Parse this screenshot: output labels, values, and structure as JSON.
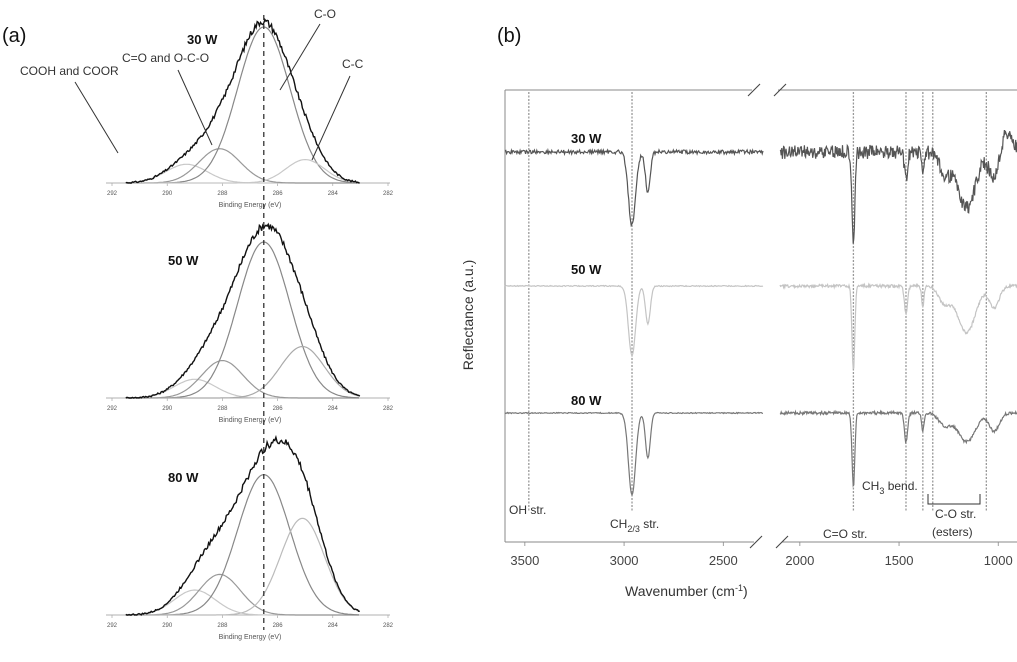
{
  "chart_data": [
    {
      "panel_label": "(a)",
      "type": "line",
      "xlabel": "Binding Energy (eV)",
      "xlim": [
        292,
        282
      ],
      "x_ticks": [
        "292",
        "290",
        "288",
        "286",
        "284",
        "282"
      ],
      "dashed_line_x": 286.5,
      "annotations": [
        "COOH and COOR",
        "C=O and O-C-O",
        "C-O",
        "C-C"
      ],
      "subplots": [
        {
          "name": "30 W",
          "components": [
            {
              "label": "COOH and COOR",
              "center": 289.3,
              "amplitude": 0.12,
              "width": 0.75,
              "color": "#c8c8c8"
            },
            {
              "label": "C=O and O-C-O",
              "center": 288.1,
              "amplitude": 0.22,
              "width": 0.75,
              "color": "#999999"
            },
            {
              "label": "C-O",
              "center": 286.5,
              "amplitude": 1.0,
              "width": 0.95,
              "color": "#888888"
            },
            {
              "label": "C-C",
              "center": 285.0,
              "amplitude": 0.15,
              "width": 0.7,
              "color": "#c8c8c8"
            }
          ]
        },
        {
          "name": "50 W",
          "components": [
            {
              "label": "COOH and COOR",
              "center": 289.0,
              "amplitude": 0.12,
              "width": 0.75,
              "color": "#c8c8c8"
            },
            {
              "label": "C=O and O-C-O",
              "center": 288.0,
              "amplitude": 0.24,
              "width": 0.75,
              "color": "#999999"
            },
            {
              "label": "C-O",
              "center": 286.5,
              "amplitude": 1.0,
              "width": 0.95,
              "color": "#888888"
            },
            {
              "label": "C-C",
              "center": 285.1,
              "amplitude": 0.33,
              "width": 0.8,
              "color": "#aaaaaa"
            }
          ]
        },
        {
          "name": "80 W",
          "components": [
            {
              "label": "COOH and COOR",
              "center": 289.0,
              "amplitude": 0.16,
              "width": 0.75,
              "color": "#c8c8c8"
            },
            {
              "label": "C=O and O-C-O",
              "center": 288.1,
              "amplitude": 0.26,
              "width": 0.75,
              "color": "#999999"
            },
            {
              "label": "C-O",
              "center": 286.5,
              "amplitude": 0.9,
              "width": 0.95,
              "color": "#888888"
            },
            {
              "label": "C-C",
              "center": 285.1,
              "amplitude": 0.62,
              "width": 0.8,
              "color": "#bbbbbb"
            }
          ]
        }
      ]
    },
    {
      "panel_label": "(b)",
      "type": "line",
      "xlabel": "Wavenumber (cm",
      "xlabel_sup": "-1",
      "xlabel_close": ")",
      "ylabel": "Reflectance (a.u.)",
      "x_ticks": [
        "3500",
        "3000",
        "2500",
        "2000",
        "1500",
        "1000"
      ],
      "axis_break": [
        2300,
        2100
      ],
      "segment_ranges": [
        [
          3600,
          2300
        ],
        [
          2100,
          850
        ]
      ],
      "reference_lines": [
        3480,
        2960,
        1730,
        1465,
        1380,
        1330,
        1060
      ],
      "series": [
        {
          "name": "30 W",
          "color": "#555555",
          "noisy": true,
          "dips": [
            [
              2960,
              0.82,
              18
            ],
            [
              2880,
              0.45,
              12
            ],
            [
              1730,
              1.0,
              7
            ],
            [
              1465,
              0.32,
              8
            ],
            [
              1380,
              0.25,
              6
            ],
            [
              1270,
              0.22,
              30
            ],
            [
              1160,
              0.62,
              45
            ],
            [
              1020,
              0.3,
              25
            ]
          ],
          "peaks": [
            [
              960,
              0.22,
              30
            ]
          ]
        },
        {
          "name": "50 W",
          "color": "#c4c4c4",
          "noisy": false,
          "dips": [
            [
              2960,
              0.82,
              18
            ],
            [
              2880,
              0.45,
              12
            ],
            [
              1730,
              1.0,
              7
            ],
            [
              1465,
              0.32,
              8
            ],
            [
              1380,
              0.25,
              6
            ],
            [
              1270,
              0.2,
              30
            ],
            [
              1160,
              0.55,
              45
            ],
            [
              1020,
              0.25,
              25
            ]
          ],
          "peaks": []
        },
        {
          "name": "80 W",
          "color": "#777777",
          "noisy": false,
          "dips": [
            [
              2960,
              1.0,
              18
            ],
            [
              2880,
              0.55,
              12
            ],
            [
              1730,
              0.9,
              7
            ],
            [
              1465,
              0.35,
              8
            ],
            [
              1380,
              0.22,
              6
            ],
            [
              1270,
              0.15,
              30
            ],
            [
              1160,
              0.35,
              45
            ],
            [
              1020,
              0.22,
              25
            ]
          ],
          "peaks": []
        }
      ],
      "annotations": {
        "oh": "OH str.",
        "ch_main": "CH",
        "ch_sub": "2/3",
        "ch_tail": " str.",
        "co_double": "C=O str.",
        "ch3_main": "CH",
        "ch3_sub": "3",
        "ch3_tail": " bend.",
        "co_line1": "C-O str.",
        "co_line2": "(esters)"
      }
    }
  ]
}
